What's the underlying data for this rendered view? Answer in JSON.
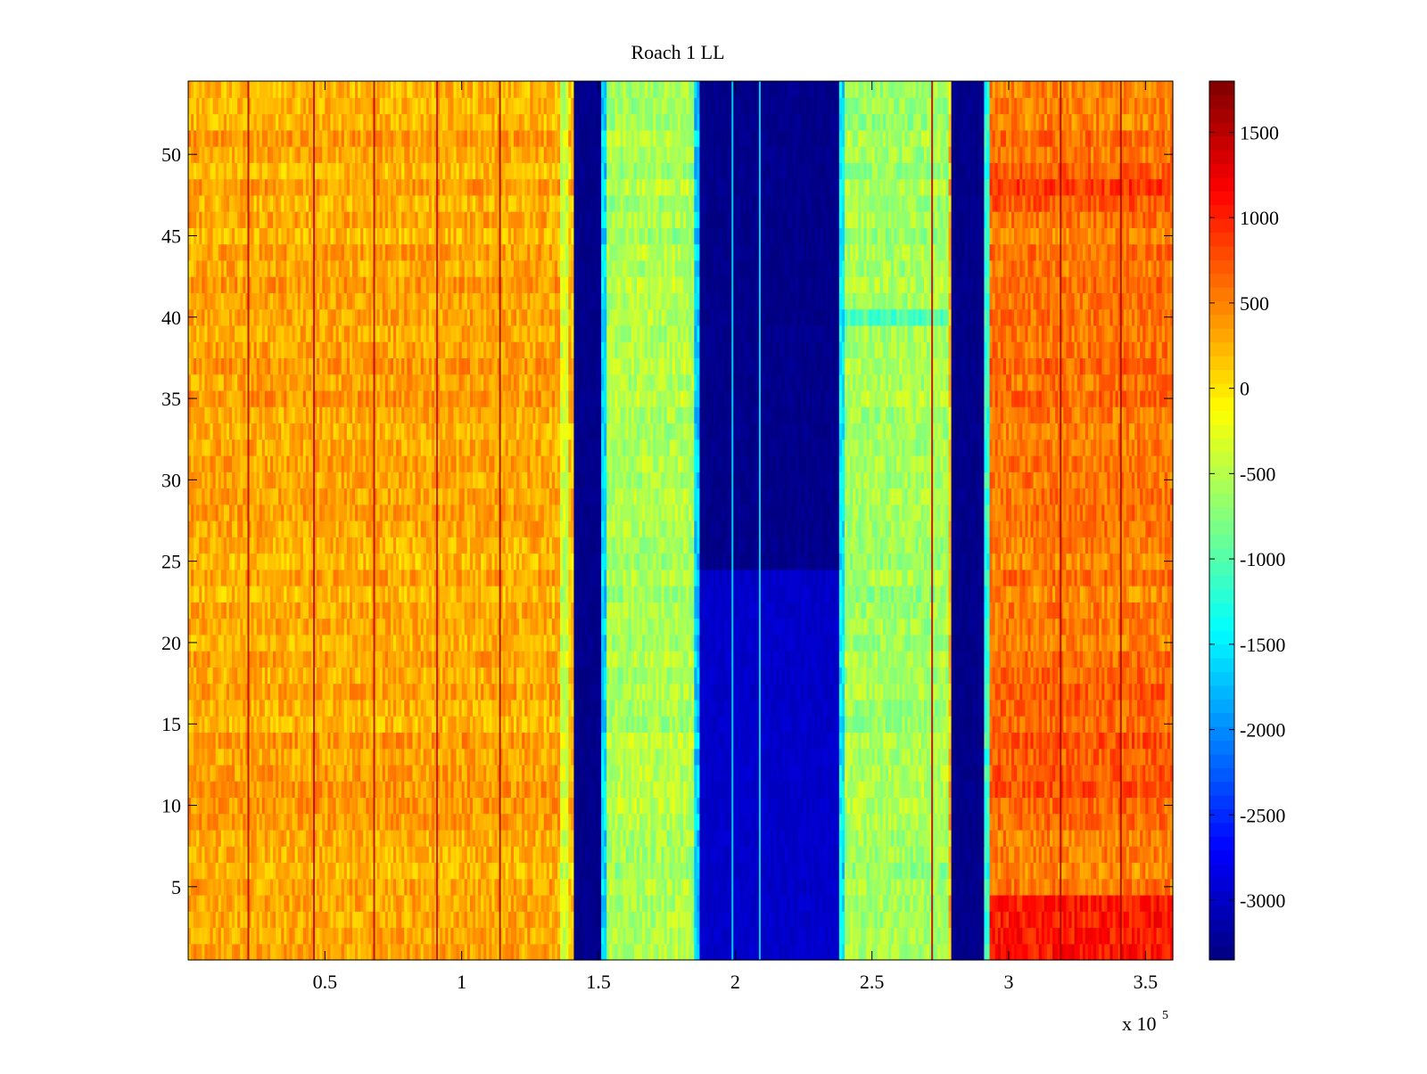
{
  "chart_data": {
    "type": "heatmap",
    "title": "Roach 1 LL",
    "xlabel": "",
    "ylabel": "",
    "x_multiplier_label": "x 10",
    "x_multiplier_exponent": "5",
    "xlim": [
      0,
      360000
    ],
    "ylim": [
      0.5,
      54.5
    ],
    "x_ticks": [
      {
        "value": 50000,
        "label": "0.5"
      },
      {
        "value": 100000,
        "label": "1"
      },
      {
        "value": 150000,
        "label": "1.5"
      },
      {
        "value": 200000,
        "label": "2"
      },
      {
        "value": 250000,
        "label": "2.5"
      },
      {
        "value": 300000,
        "label": "3"
      },
      {
        "value": 350000,
        "label": "3.5"
      }
    ],
    "y_ticks": [
      {
        "value": 5,
        "label": "5"
      },
      {
        "value": 10,
        "label": "10"
      },
      {
        "value": 15,
        "label": "15"
      },
      {
        "value": 20,
        "label": "20"
      },
      {
        "value": 25,
        "label": "25"
      },
      {
        "value": 30,
        "label": "30"
      },
      {
        "value": 35,
        "label": "35"
      },
      {
        "value": 40,
        "label": "40"
      },
      {
        "value": 45,
        "label": "45"
      },
      {
        "value": 50,
        "label": "50"
      }
    ],
    "colormap": "jet",
    "clim": [
      -3350,
      1800
    ],
    "colorbar_ticks": [
      {
        "value": 1500,
        "label": "1500"
      },
      {
        "value": 1000,
        "label": "1000"
      },
      {
        "value": 500,
        "label": "500"
      },
      {
        "value": 0,
        "label": "0"
      },
      {
        "value": -500,
        "label": "-500"
      },
      {
        "value": -1000,
        "label": "-1000"
      },
      {
        "value": -1500,
        "label": "-1500"
      },
      {
        "value": -2000,
        "label": "-2000"
      },
      {
        "value": -2500,
        "label": "-2500"
      },
      {
        "value": -3000,
        "label": "-3000"
      }
    ],
    "rows": 54,
    "row_range": [
      1,
      54
    ],
    "column_bands": [
      {
        "x_start": 0,
        "x_end": 136000,
        "mean_value": 300
      },
      {
        "x_start": 136000,
        "x_end": 139000,
        "mean_value": -400
      },
      {
        "x_start": 139000,
        "x_end": 141000,
        "mean_value": 200
      },
      {
        "x_start": 141000,
        "x_end": 151000,
        "mean_value": -3300
      },
      {
        "x_start": 151000,
        "x_end": 153000,
        "mean_value": -1600
      },
      {
        "x_start": 153000,
        "x_end": 185000,
        "mean_value": -550
      },
      {
        "x_start": 185000,
        "x_end": 187000,
        "mean_value": -1700
      },
      {
        "x_start": 187000,
        "x_end": 238000,
        "mean_value": -3300
      },
      {
        "x_start": 238000,
        "x_end": 240000,
        "mean_value": -1500
      },
      {
        "x_start": 240000,
        "x_end": 278000,
        "mean_value": -600
      },
      {
        "x_start": 278000,
        "x_end": 279500,
        "mean_value": 200
      },
      {
        "x_start": 279500,
        "x_end": 291000,
        "mean_value": -3300
      },
      {
        "x_start": 291000,
        "x_end": 293000,
        "mean_value": -1200
      },
      {
        "x_start": 293000,
        "x_end": 360000,
        "mean_value": 550
      }
    ],
    "row_features": [
      {
        "rows": [
          1,
          4
        ],
        "region": "x > 293000",
        "mean_value": 1150
      },
      {
        "rows": [
          47,
          49
        ],
        "region": "x > 293000",
        "mean_value": 850
      },
      {
        "rows": [
          11,
          18
        ],
        "region": "x > 293000",
        "mean_value": 700
      },
      {
        "rows": [
          40,
          40
        ],
        "region": "x 240000-278000",
        "mean_value": -1200
      },
      {
        "rows": [
          1,
          24
        ],
        "region": "x 187000-238000",
        "mean_value": -2900
      }
    ],
    "vertical_streaks": [
      {
        "x": 22000,
        "value": 1500
      },
      {
        "x": 46000,
        "value": 1500
      },
      {
        "x": 68000,
        "value": 1500
      },
      {
        "x": 91000,
        "value": 1400
      },
      {
        "x": 114000,
        "value": 1600
      },
      {
        "x": 199000,
        "value": -1500
      },
      {
        "x": 209000,
        "value": -1500
      },
      {
        "x": 272000,
        "value": 1500
      },
      {
        "x": 319000,
        "value": 1600
      },
      {
        "x": 341000,
        "value": 1600
      }
    ]
  }
}
